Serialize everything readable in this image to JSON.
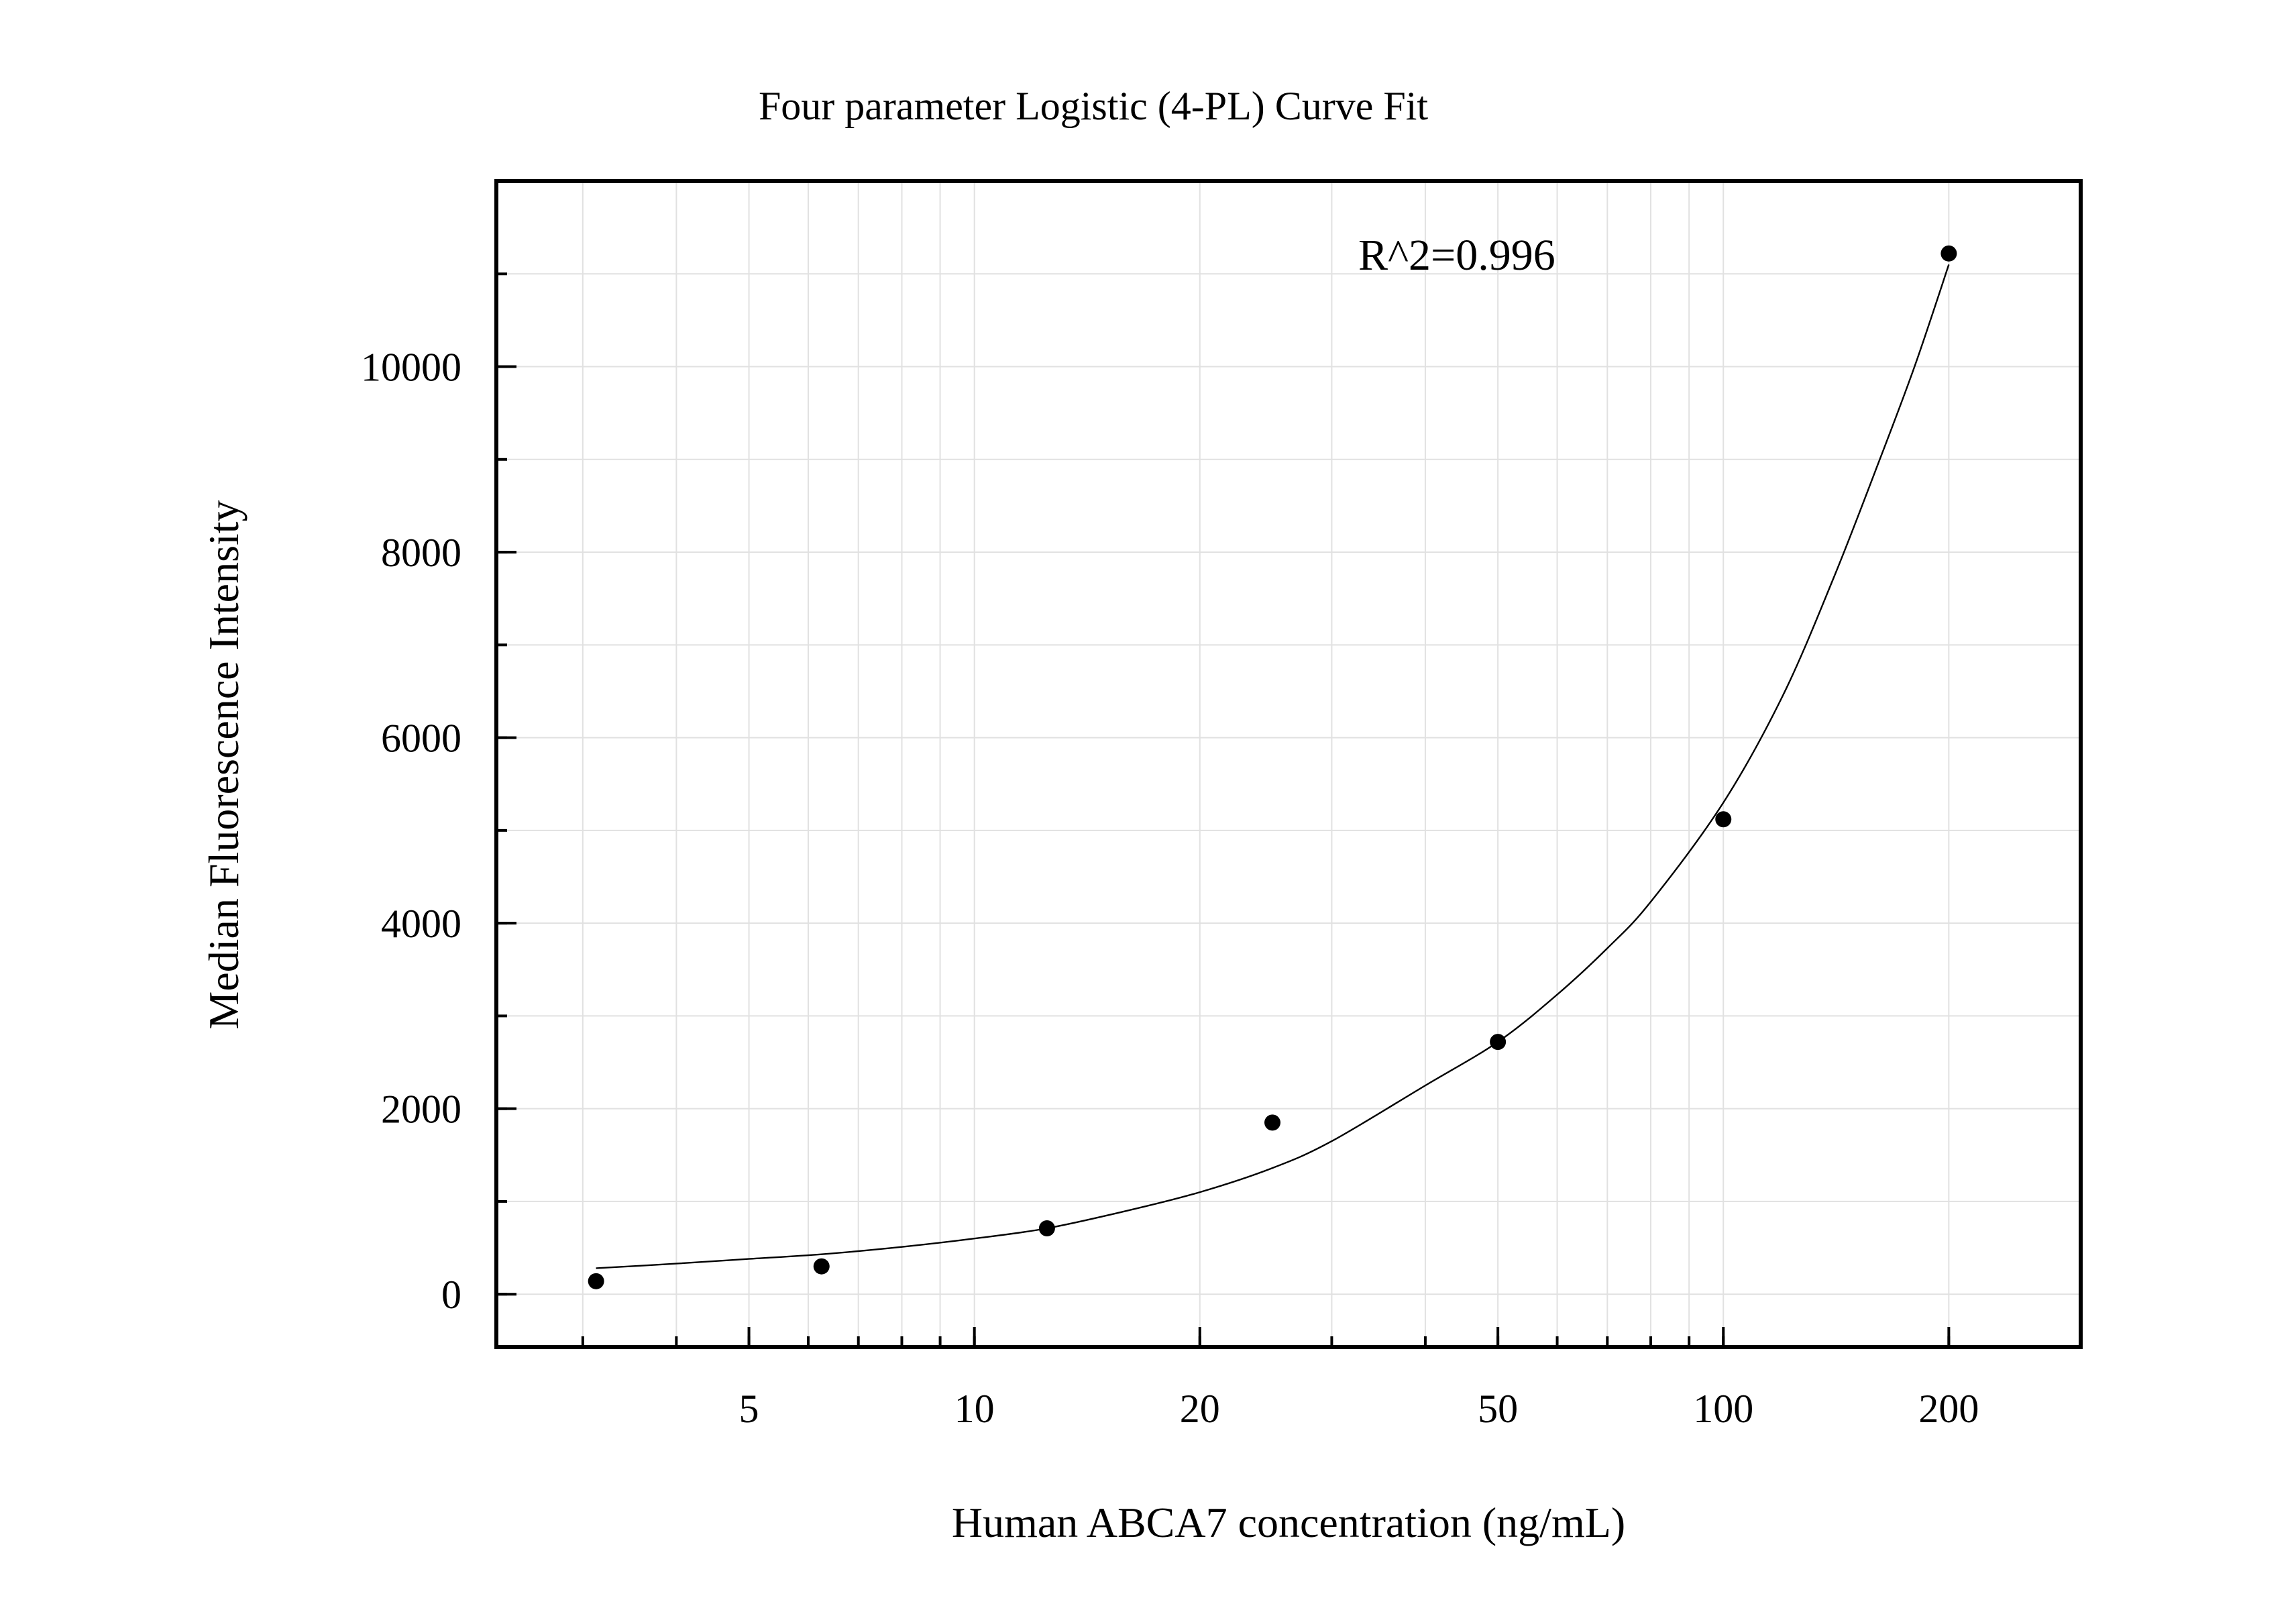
{
  "chart_data": {
    "type": "scatter",
    "title": "Four parameter Logistic (4-PL) Curve Fit",
    "xlabel": "Human ABCA7 concentration (ng/mL)",
    "ylabel": "Median Fluorescence Intensity",
    "x_scale": "log",
    "xlim": [
      2.3,
      300
    ],
    "ylim": [
      -570,
      12000
    ],
    "x_ticks": [
      5,
      10,
      20,
      50,
      100,
      200
    ],
    "x_tick_labels": [
      "5",
      "10",
      "20",
      "50",
      "100",
      "200"
    ],
    "y_ticks": [
      0,
      2000,
      4000,
      6000,
      8000,
      10000
    ],
    "y_tick_labels": [
      "0",
      "2000",
      "4000",
      "6000",
      "8000",
      "10000"
    ],
    "grid": true,
    "annotation": "R^2=0.996",
    "series": [
      {
        "kind": "points",
        "x": [
          3.125,
          6.25,
          12.5,
          25,
          50,
          100,
          200
        ],
        "y": [
          140,
          300,
          710,
          1850,
          2720,
          5120,
          11220
        ]
      },
      {
        "kind": "fit",
        "x": [
          3.125,
          4,
          5,
          6.25,
          8,
          10,
          12.5,
          16,
          20,
          25,
          30,
          40,
          50,
          60,
          70,
          80,
          100,
          120,
          140,
          160,
          180,
          200
        ],
        "y": [
          280,
          330,
          380,
          430,
          510,
          600,
          710,
          900,
          1100,
          1360,
          1650,
          2250,
          2720,
          3230,
          3730,
          4230,
          5300,
          6450,
          7700,
          8900,
          10000,
          11100
        ]
      }
    ]
  }
}
